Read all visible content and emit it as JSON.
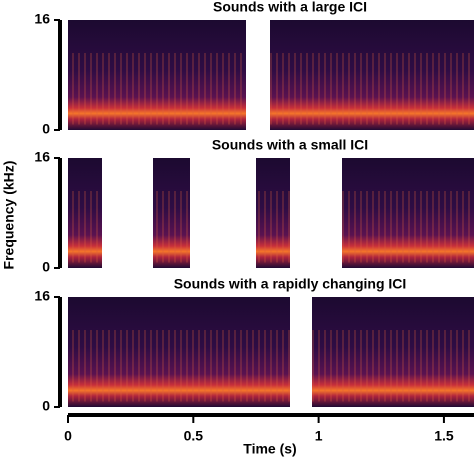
{
  "chart_data": [
    {
      "type": "spectrogram",
      "title": "Sounds with a large ICI",
      "ylim": [
        0,
        16
      ],
      "yticks": [
        0,
        16
      ]
    },
    {
      "type": "spectrogram",
      "title": "Sounds with a small ICI",
      "ylabel": "Frequency (kHz)",
      "ylim": [
        0,
        16
      ],
      "yticks": [
        0,
        16
      ]
    },
    {
      "type": "spectrogram",
      "title": "Sounds with a rapidly changing ICI",
      "ylim": [
        0,
        16
      ],
      "yticks": [
        0,
        16
      ],
      "xlabel": "Time (s)",
      "xlim": [
        0,
        1.62
      ],
      "xticks": [
        0,
        0.5,
        1,
        1.5
      ]
    }
  ]
}
